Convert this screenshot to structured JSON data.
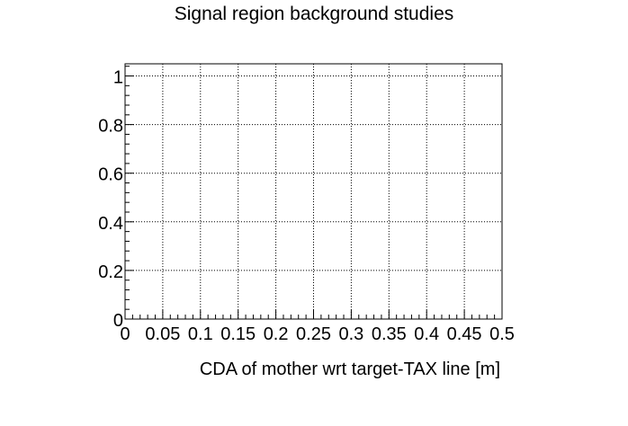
{
  "chart_data": {
    "type": "scatter",
    "title": "Signal region background studies",
    "xlabel": "CDA of mother wrt target-TAX line [m]",
    "ylabel": "",
    "xlim": [
      0,
      0.5
    ],
    "ylim": [
      0,
      1.05
    ],
    "x_ticks": [
      0,
      0.05,
      0.1,
      0.15,
      0.2,
      0.25,
      0.3,
      0.35,
      0.4,
      0.45,
      0.5
    ],
    "x_tick_labels": [
      "0",
      "0.05",
      "0.1",
      "0.15",
      "0.2",
      "0.25",
      "0.3",
      "0.35",
      "0.4",
      "0.45",
      "0.5"
    ],
    "y_ticks": [
      0,
      0.2,
      0.4,
      0.6,
      0.8,
      1
    ],
    "y_tick_labels": [
      "0",
      "0.2",
      "0.4",
      "0.6",
      "0.8",
      "1"
    ],
    "grid": true,
    "grid_style": "dotted",
    "series": [],
    "colors": {
      "axis": "#000000",
      "grid": "#000000",
      "background": "#ffffff"
    }
  }
}
